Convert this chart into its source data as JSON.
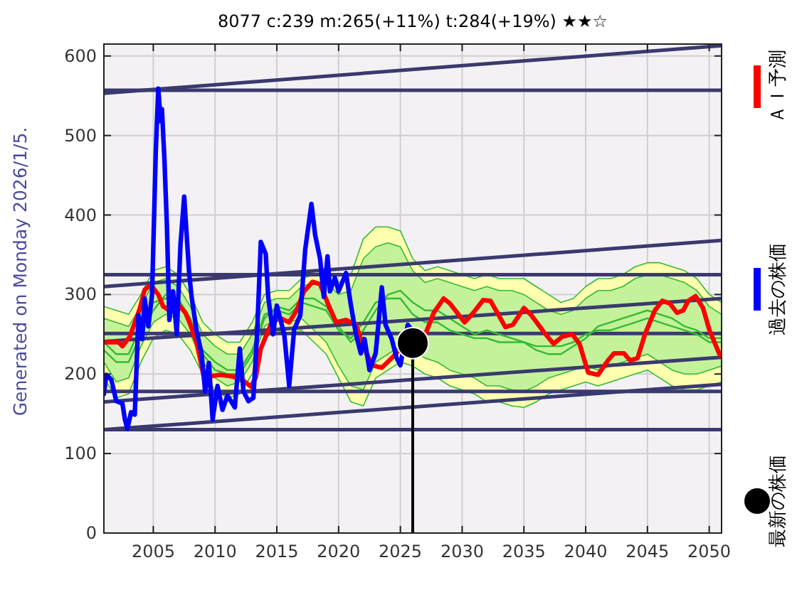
{
  "chart_data": {
    "type": "line",
    "title": "8077 c:239 m:265(+11%) t:284(+19%) ★★☆",
    "annotations": [
      "Generated on Monday 2026/1/5."
    ],
    "xlim": [
      2001,
      2051
    ],
    "xticks": [
      2005,
      2010,
      2015,
      2020,
      2025,
      2030,
      2035,
      2040,
      2045,
      2050
    ],
    "ylim": [
      0,
      615
    ],
    "yticks": [
      0,
      100,
      200,
      300,
      400,
      500,
      600
    ],
    "grid": true,
    "legend": "right",
    "ref_lines": [
      {
        "axis": "y",
        "value": 557,
        "color": "#3a3a70"
      },
      {
        "axis": "y",
        "value": 325,
        "color": "#3a3a70"
      },
      {
        "axis": "y",
        "value": 251,
        "color": "#3a3a70"
      },
      {
        "axis": "y",
        "value": 178,
        "color": "#3a3a70"
      },
      {
        "axis": "y",
        "value": 130,
        "color": "#3a3a70"
      }
    ],
    "series": [
      {
        "color": "#33bb33",
        "x": [
          2001,
          2002,
          2003,
          2004,
          2005,
          2006,
          2007,
          2008,
          2009,
          2010,
          2011,
          2012,
          2013,
          2014,
          2015,
          2016,
          2017,
          2018,
          2019,
          2020,
          2021,
          2022,
          2023,
          2024,
          2025,
          2026,
          2027,
          2028,
          2029,
          2030,
          2031,
          2032,
          2033,
          2034,
          2035,
          2036,
          2037,
          2038,
          2039,
          2040,
          2041,
          2042,
          2043,
          2044,
          2045,
          2046,
          2047,
          2048,
          2049,
          2050,
          2051
        ],
        "values": [
          240,
          225,
          225,
          260,
          290,
          295,
          290,
          265,
          230,
          215,
          205,
          205,
          230,
          275,
          280,
          275,
          290,
          285,
          280,
          255,
          245,
          265,
          290,
          295,
          295,
          275,
          265,
          265,
          255,
          250,
          245,
          245,
          240,
          240,
          240,
          235,
          235,
          235,
          240,
          250,
          255,
          255,
          260,
          265,
          270,
          265,
          260,
          255,
          250,
          240,
          240
        ],
        "upper": [
          285,
          280,
          275,
          300,
          330,
          335,
          325,
          300,
          265,
          250,
          240,
          240,
          265,
          300,
          305,
          305,
          320,
          325,
          330,
          315,
          325,
          370,
          385,
          385,
          380,
          345,
          330,
          335,
          330,
          325,
          320,
          325,
          320,
          320,
          320,
          310,
          300,
          290,
          295,
          310,
          320,
          320,
          325,
          335,
          340,
          340,
          335,
          330,
          320,
          300,
          290
        ],
        "lower": [
          195,
          170,
          175,
          215,
          245,
          255,
          250,
          230,
          200,
          180,
          170,
          175,
          200,
          245,
          255,
          250,
          255,
          240,
          225,
          195,
          165,
          160,
          195,
          205,
          215,
          210,
          200,
          195,
          185,
          180,
          175,
          165,
          165,
          160,
          158,
          165,
          175,
          180,
          185,
          190,
          185,
          190,
          195,
          200,
          205,
          195,
          185,
          180,
          180,
          185,
          190
        ]
      },
      {
        "color": "#33bb33",
        "x": [
          2001,
          2002,
          2003,
          2004,
          2005,
          2006,
          2007,
          2008,
          2009,
          2010,
          2011,
          2012,
          2013,
          2014,
          2015,
          2016,
          2017,
          2018,
          2019,
          2020,
          2021,
          2022,
          2023,
          2024,
          2025,
          2026,
          2027,
          2028,
          2029,
          2030,
          2031,
          2032,
          2033,
          2034,
          2035,
          2036,
          2037,
          2038,
          2039,
          2040,
          2041,
          2042,
          2043,
          2044,
          2045,
          2046,
          2047,
          2048,
          2049,
          2050,
          2051
        ],
        "values": [
          230,
          215,
          215,
          250,
          280,
          300,
          295,
          270,
          225,
          205,
          200,
          200,
          225,
          270,
          285,
          280,
          295,
          295,
          285,
          260,
          240,
          255,
          280,
          300,
          305,
          290,
          280,
          280,
          270,
          260,
          250,
          255,
          250,
          245,
          240,
          230,
          225,
          225,
          235,
          245,
          260,
          265,
          270,
          275,
          280,
          275,
          270,
          260,
          255,
          245,
          245
        ],
        "upper": [
          270,
          265,
          260,
          285,
          315,
          320,
          310,
          285,
          250,
          235,
          225,
          225,
          250,
          290,
          295,
          295,
          310,
          315,
          315,
          300,
          305,
          345,
          360,
          365,
          360,
          330,
          315,
          320,
          315,
          310,
          305,
          310,
          305,
          305,
          300,
          290,
          280,
          275,
          280,
          295,
          305,
          305,
          310,
          320,
          325,
          325,
          320,
          315,
          305,
          285,
          275
        ],
        "lower": [
          215,
          190,
          195,
          235,
          265,
          275,
          270,
          250,
          215,
          195,
          185,
          190,
          215,
          260,
          270,
          265,
          270,
          255,
          240,
          210,
          185,
          180,
          215,
          225,
          235,
          230,
          220,
          215,
          205,
          200,
          195,
          185,
          185,
          180,
          178,
          185,
          195,
          200,
          205,
          210,
          205,
          210,
          215,
          220,
          225,
          215,
          205,
          200,
          200,
          205,
          210
        ]
      },
      {
        "color": "#3a3a70",
        "x": [
          2001,
          2051
        ],
        "values": [
          553,
          613
        ]
      },
      {
        "color": "#3a3a70",
        "x": [
          2001,
          2051
        ],
        "values": [
          310,
          368
        ]
      },
      {
        "color": "#3a3a70",
        "x": [
          2001,
          2051
        ],
        "values": [
          241,
          295
        ]
      },
      {
        "color": "#3a3a70",
        "x": [
          2001,
          2051
        ],
        "values": [
          165,
          221
        ]
      },
      {
        "color": "#3a3a70",
        "x": [
          2001,
          2051
        ],
        "values": [
          130,
          187
        ]
      },
      {
        "name": "ＡＩ予測",
        "color": "#ff0000",
        "x": [
          2001.0,
          2002.2,
          2002.5,
          2003.1,
          2003.9,
          2004.3,
          2004.8,
          2005.4,
          2005.8,
          2006.3,
          2007.0,
          2007.6,
          2008.0,
          2008.5,
          2009.1,
          2010.4,
          2011.4,
          2012.2,
          2012.9,
          2013.3,
          2013.7,
          2014.5,
          2015.2,
          2016.0,
          2016.6,
          2017.2,
          2017.9,
          2018.5,
          2019.2,
          2019.8,
          2020.6,
          2021.4,
          2022.0,
          2022.7,
          2023.5,
          2024.3,
          2025.0,
          2027.1,
          2027.7,
          2028.5,
          2029.0,
          2030.2,
          2030.9,
          2031.7,
          2032.3,
          2033.5,
          2034.1,
          2035.0,
          2035.6,
          2036.6,
          2037.4,
          2038.1,
          2038.9,
          2039.5,
          2040.2,
          2041.0,
          2041.8,
          2042.3,
          2043.1,
          2043.6,
          2044.2,
          2044.8,
          2045.6,
          2046.2,
          2046.8,
          2047.4,
          2047.9,
          2048.3,
          2048.9,
          2049.5,
          2050.0,
          2050.8,
          2051.0
        ],
        "values": [
          240,
          240,
          235,
          247,
          282,
          306,
          312,
          300,
          285,
          280,
          288,
          277,
          262,
          240,
          196,
          199,
          197,
          193,
          184,
          196,
          232,
          262,
          271,
          265,
          280,
          304,
          316,
          313,
          286,
          265,
          268,
          262,
          235,
          211,
          208,
          220,
          232,
          253,
          277,
          295,
          289,
          265,
          277,
          293,
          292,
          259,
          262,
          283,
          274,
          253,
          238,
          247,
          250,
          238,
          202,
          199,
          217,
          226,
          226,
          217,
          220,
          250,
          280,
          292,
          289,
          277,
          280,
          292,
          298,
          283,
          256,
          226,
          222
        ]
      },
      {
        "name": "過去の株価",
        "color": "#0000ff",
        "x": [
          2001.0,
          2001.2,
          2001.6,
          2002.0,
          2002.5,
          2002.7,
          2002.9,
          2003.2,
          2003.5,
          2003.8,
          2004.1,
          2004.3,
          2004.6,
          2004.9,
          2005.2,
          2005.4,
          2005.6,
          2005.7,
          2005.9,
          2006.1,
          2006.3,
          2006.6,
          2006.9,
          2007.2,
          2007.5,
          2007.7,
          2007.9,
          2008.1,
          2008.5,
          2008.9,
          2009.2,
          2009.5,
          2009.8,
          2010.2,
          2010.6,
          2011.0,
          2011.6,
          2012.0,
          2012.3,
          2012.7,
          2013.1,
          2013.4,
          2013.7,
          2014.1,
          2014.3,
          2014.7,
          2015.0,
          2015.6,
          2016.0,
          2016.4,
          2016.9,
          2017.3,
          2017.8,
          2018.1,
          2018.5,
          2018.8,
          2019.1,
          2019.3,
          2019.7,
          2020.0,
          2020.6,
          2021.0,
          2021.4,
          2021.8,
          2022.1,
          2022.5,
          2023.0,
          2023.5,
          2023.8,
          2024.3,
          2024.7,
          2025.0,
          2025.6,
          2025.8
        ],
        "values": [
          175,
          199,
          193,
          166,
          163,
          143,
          131,
          152,
          149,
          274,
          244,
          295,
          260,
          300,
          480,
          559,
          518,
          533,
          470,
          387,
          268,
          304,
          250,
          363,
          423,
          375,
          327,
          297,
          255,
          226,
          178,
          214,
          143,
          185,
          155,
          173,
          158,
          232,
          178,
          166,
          170,
          250,
          366,
          351,
          297,
          250,
          286,
          250,
          185,
          256,
          274,
          357,
          414,
          375,
          345,
          297,
          348,
          304,
          321,
          304,
          327,
          286,
          250,
          226,
          244,
          205,
          226,
          309,
          262,
          244,
          220,
          211,
          262,
          258
        ]
      },
      {
        "name": "最新の株価",
        "type": "lollipop",
        "color": "#000000",
        "x": [
          2026
        ],
        "values": [
          239
        ]
      }
    ]
  }
}
